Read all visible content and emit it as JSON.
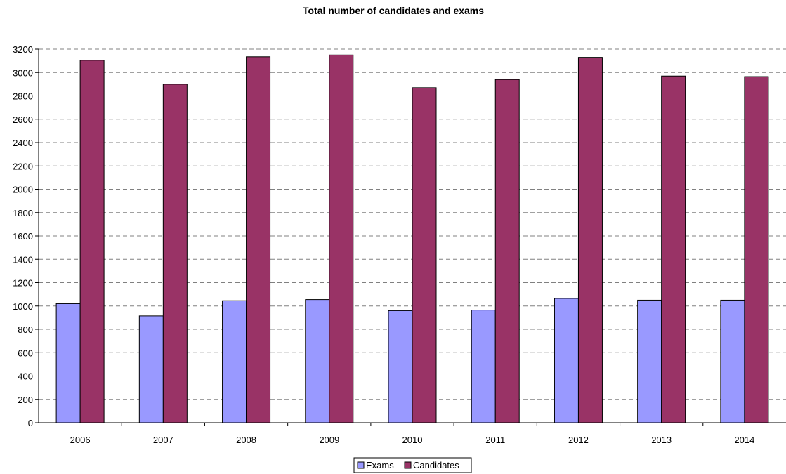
{
  "chart_data": {
    "type": "bar",
    "title": "Total number of candidates and exams",
    "xlabel": "",
    "ylabel": "",
    "categories": [
      "2006",
      "2007",
      "2008",
      "2009",
      "2010",
      "2011",
      "2012",
      "2013",
      "2014"
    ],
    "series": [
      {
        "name": "Exams",
        "color": "#9999ff",
        "values": [
          1020,
          915,
          1045,
          1055,
          960,
          965,
          1065,
          1050,
          1050
        ]
      },
      {
        "name": "Candidates",
        "color": "#993366",
        "values": [
          3105,
          2900,
          3135,
          3150,
          2870,
          2940,
          3130,
          2970,
          2965
        ]
      }
    ],
    "ylim": [
      0,
      3200
    ],
    "yticks": [
      "0",
      "200",
      "400",
      "600",
      "800",
      "1000",
      "1200",
      "1400",
      "1600",
      "1800",
      "2000",
      "2200",
      "2400",
      "2600",
      "2800",
      "3000",
      "3200"
    ],
    "grid": true,
    "legend_position": "bottom"
  }
}
